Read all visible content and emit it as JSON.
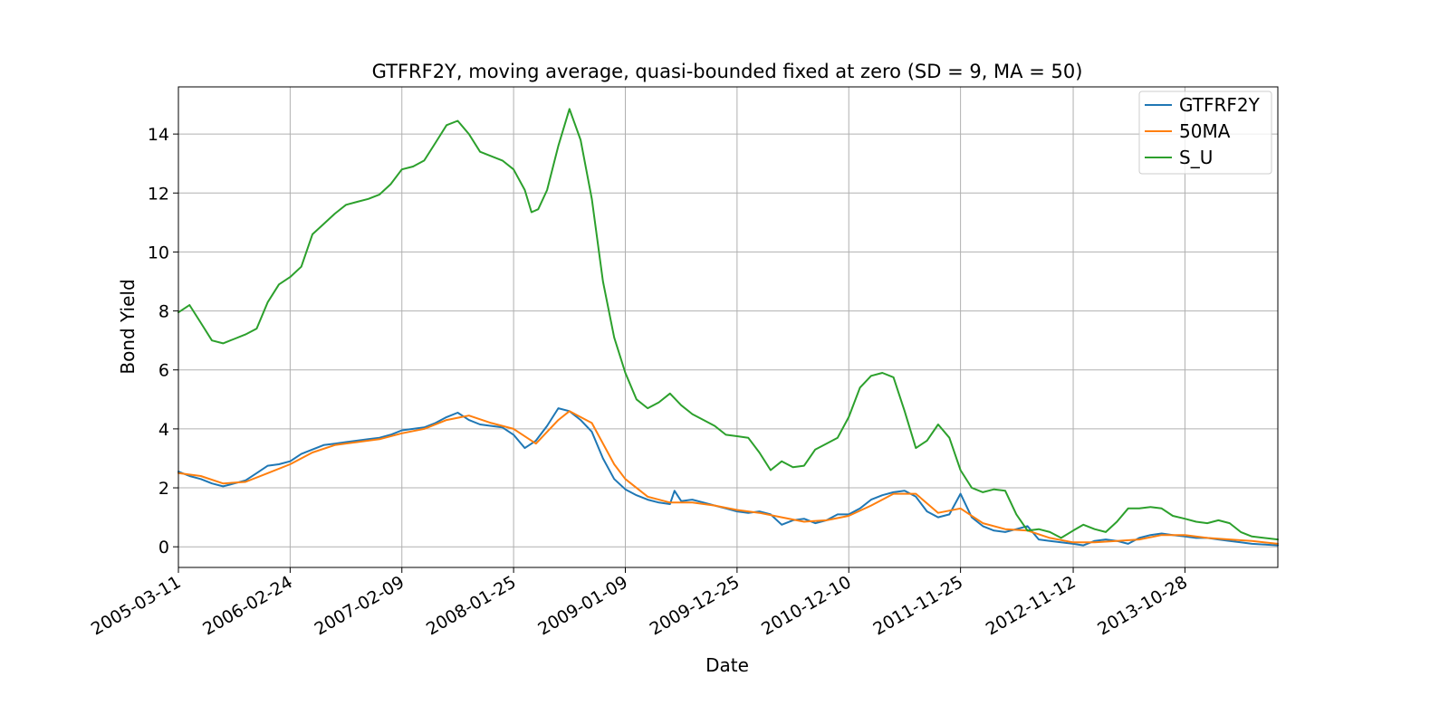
{
  "chart_data": {
    "type": "line",
    "title": "GTFRF2Y, moving average, quasi-bounded fixed at zero (SD = 9, MA = 50)",
    "xlabel": "Date",
    "ylabel": "Bond Yield",
    "x_ticks": [
      "2005-03-11",
      "2006-02-24",
      "2007-02-09",
      "2008-01-25",
      "2009-01-09",
      "2009-12-25",
      "2010-12-10",
      "2011-11-25",
      "2012-11-12",
      "2013-10-28"
    ],
    "y_ticks": [
      "0",
      "2",
      "4",
      "6",
      "8",
      "10",
      "12",
      "14"
    ],
    "xlim": [
      "2005-03-11",
      "2014-08-15"
    ],
    "ylim": [
      -0.7,
      15.6
    ],
    "grid": true,
    "legend_position": "top-right",
    "series": [
      {
        "name": "GTFRF2Y",
        "color": "#1f77b4",
        "points": [
          [
            "2005-03-11",
            2.55
          ],
          [
            "2005-04-15",
            2.4
          ],
          [
            "2005-05-20",
            2.3
          ],
          [
            "2005-06-24",
            2.15
          ],
          [
            "2005-07-29",
            2.05
          ],
          [
            "2005-09-02",
            2.15
          ],
          [
            "2005-10-07",
            2.25
          ],
          [
            "2005-11-11",
            2.5
          ],
          [
            "2005-12-16",
            2.75
          ],
          [
            "2006-01-20",
            2.8
          ],
          [
            "2006-02-24",
            2.9
          ],
          [
            "2006-03-31",
            3.15
          ],
          [
            "2006-05-05",
            3.3
          ],
          [
            "2006-06-09",
            3.45
          ],
          [
            "2006-07-14",
            3.5
          ],
          [
            "2006-08-18",
            3.55
          ],
          [
            "2006-09-22",
            3.6
          ],
          [
            "2006-10-27",
            3.65
          ],
          [
            "2006-12-01",
            3.7
          ],
          [
            "2007-01-05",
            3.8
          ],
          [
            "2007-02-09",
            3.95
          ],
          [
            "2007-03-16",
            4.0
          ],
          [
            "2007-04-20",
            4.05
          ],
          [
            "2007-05-25",
            4.2
          ],
          [
            "2007-06-29",
            4.4
          ],
          [
            "2007-08-03",
            4.55
          ],
          [
            "2007-09-07",
            4.3
          ],
          [
            "2007-10-12",
            4.15
          ],
          [
            "2007-11-16",
            4.1
          ],
          [
            "2007-12-21",
            4.05
          ],
          [
            "2008-01-25",
            3.8
          ],
          [
            "2008-02-29",
            3.35
          ],
          [
            "2008-04-04",
            3.6
          ],
          [
            "2008-05-09",
            4.1
          ],
          [
            "2008-06-13",
            4.7
          ],
          [
            "2008-07-18",
            4.6
          ],
          [
            "2008-08-22",
            4.3
          ],
          [
            "2008-09-26",
            3.9
          ],
          [
            "2008-10-31",
            3.0
          ],
          [
            "2008-12-05",
            2.3
          ],
          [
            "2009-01-09",
            1.95
          ],
          [
            "2009-02-13",
            1.75
          ],
          [
            "2009-03-20",
            1.6
          ],
          [
            "2009-04-24",
            1.5
          ],
          [
            "2009-05-29",
            1.45
          ],
          [
            "2009-06-12",
            1.9
          ],
          [
            "2009-07-03",
            1.55
          ],
          [
            "2009-08-07",
            1.6
          ],
          [
            "2009-09-11",
            1.5
          ],
          [
            "2009-10-16",
            1.4
          ],
          [
            "2009-11-20",
            1.3
          ],
          [
            "2009-12-25",
            1.2
          ],
          [
            "2010-01-29",
            1.15
          ],
          [
            "2010-03-05",
            1.2
          ],
          [
            "2010-04-09",
            1.1
          ],
          [
            "2010-05-14",
            0.75
          ],
          [
            "2010-06-18",
            0.9
          ],
          [
            "2010-07-23",
            0.95
          ],
          [
            "2010-08-27",
            0.8
          ],
          [
            "2010-10-01",
            0.9
          ],
          [
            "2010-11-05",
            1.1
          ],
          [
            "2010-12-10",
            1.1
          ],
          [
            "2011-01-14",
            1.3
          ],
          [
            "2011-02-18",
            1.6
          ],
          [
            "2011-03-25",
            1.75
          ],
          [
            "2011-04-29",
            1.85
          ],
          [
            "2011-06-03",
            1.9
          ],
          [
            "2011-07-08",
            1.7
          ],
          [
            "2011-08-12",
            1.2
          ],
          [
            "2011-09-16",
            1.0
          ],
          [
            "2011-10-21",
            1.1
          ],
          [
            "2011-11-25",
            1.8
          ],
          [
            "2011-12-30",
            1.0
          ],
          [
            "2012-02-03",
            0.7
          ],
          [
            "2012-03-09",
            0.55
          ],
          [
            "2012-04-13",
            0.5
          ],
          [
            "2012-05-18",
            0.6
          ],
          [
            "2012-06-22",
            0.7
          ],
          [
            "2012-07-27",
            0.25
          ],
          [
            "2012-08-31",
            0.2
          ],
          [
            "2012-10-05",
            0.15
          ],
          [
            "2012-11-12",
            0.1
          ],
          [
            "2012-12-14",
            0.05
          ],
          [
            "2013-01-18",
            0.2
          ],
          [
            "2013-02-22",
            0.25
          ],
          [
            "2013-03-29",
            0.2
          ],
          [
            "2013-05-03",
            0.1
          ],
          [
            "2013-06-07",
            0.3
          ],
          [
            "2013-07-12",
            0.4
          ],
          [
            "2013-08-16",
            0.45
          ],
          [
            "2013-09-20",
            0.4
          ],
          [
            "2013-10-28",
            0.35
          ],
          [
            "2013-12-02",
            0.3
          ],
          [
            "2014-01-06",
            0.3
          ],
          [
            "2014-02-10",
            0.25
          ],
          [
            "2014-03-17",
            0.2
          ],
          [
            "2014-04-21",
            0.15
          ],
          [
            "2014-05-26",
            0.1
          ],
          [
            "2014-06-30",
            0.08
          ],
          [
            "2014-08-15",
            0.05
          ]
        ]
      },
      {
        "name": "50MA",
        "color": "#ff7f0e",
        "points": [
          [
            "2005-03-11",
            2.5
          ],
          [
            "2005-05-20",
            2.4
          ],
          [
            "2005-07-29",
            2.15
          ],
          [
            "2005-10-07",
            2.2
          ],
          [
            "2005-12-16",
            2.5
          ],
          [
            "2006-02-24",
            2.8
          ],
          [
            "2006-05-05",
            3.2
          ],
          [
            "2006-07-14",
            3.45
          ],
          [
            "2006-09-22",
            3.55
          ],
          [
            "2006-12-01",
            3.65
          ],
          [
            "2007-02-09",
            3.85
          ],
          [
            "2007-04-20",
            4.0
          ],
          [
            "2007-06-29",
            4.3
          ],
          [
            "2007-09-07",
            4.45
          ],
          [
            "2007-11-16",
            4.2
          ],
          [
            "2008-01-25",
            4.0
          ],
          [
            "2008-04-04",
            3.5
          ],
          [
            "2008-06-13",
            4.3
          ],
          [
            "2008-07-18",
            4.6
          ],
          [
            "2008-09-26",
            4.2
          ],
          [
            "2008-12-05",
            2.8
          ],
          [
            "2009-01-09",
            2.3
          ],
          [
            "2009-03-20",
            1.7
          ],
          [
            "2009-05-29",
            1.5
          ],
          [
            "2009-08-07",
            1.5
          ],
          [
            "2009-10-16",
            1.4
          ],
          [
            "2009-12-25",
            1.25
          ],
          [
            "2010-03-05",
            1.15
          ],
          [
            "2010-05-14",
            1.0
          ],
          [
            "2010-07-23",
            0.85
          ],
          [
            "2010-10-01",
            0.9
          ],
          [
            "2010-12-10",
            1.05
          ],
          [
            "2011-02-18",
            1.4
          ],
          [
            "2011-04-29",
            1.8
          ],
          [
            "2011-07-08",
            1.8
          ],
          [
            "2011-09-16",
            1.15
          ],
          [
            "2011-11-25",
            1.3
          ],
          [
            "2012-02-03",
            0.8
          ],
          [
            "2012-04-13",
            0.6
          ],
          [
            "2012-06-22",
            0.55
          ],
          [
            "2012-08-31",
            0.3
          ],
          [
            "2012-11-12",
            0.15
          ],
          [
            "2013-01-18",
            0.15
          ],
          [
            "2013-03-29",
            0.2
          ],
          [
            "2013-06-07",
            0.25
          ],
          [
            "2013-08-16",
            0.4
          ],
          [
            "2013-10-28",
            0.4
          ],
          [
            "2014-01-06",
            0.3
          ],
          [
            "2014-03-17",
            0.25
          ],
          [
            "2014-05-26",
            0.2
          ],
          [
            "2014-08-15",
            0.1
          ]
        ]
      },
      {
        "name": "S_U",
        "color": "#2ca02c",
        "points": [
          [
            "2005-03-11",
            7.95
          ],
          [
            "2005-04-15",
            8.2
          ],
          [
            "2005-05-20",
            7.6
          ],
          [
            "2005-06-24",
            7.0
          ],
          [
            "2005-07-29",
            6.9
          ],
          [
            "2005-09-02",
            7.05
          ],
          [
            "2005-10-07",
            7.2
          ],
          [
            "2005-11-11",
            7.4
          ],
          [
            "2005-12-16",
            8.3
          ],
          [
            "2006-01-20",
            8.9
          ],
          [
            "2006-02-24",
            9.15
          ],
          [
            "2006-03-31",
            9.5
          ],
          [
            "2006-05-05",
            10.6
          ],
          [
            "2006-06-09",
            10.95
          ],
          [
            "2006-07-14",
            11.3
          ],
          [
            "2006-08-18",
            11.6
          ],
          [
            "2006-09-22",
            11.7
          ],
          [
            "2006-10-27",
            11.8
          ],
          [
            "2006-12-01",
            11.95
          ],
          [
            "2007-01-05",
            12.3
          ],
          [
            "2007-02-09",
            12.8
          ],
          [
            "2007-03-16",
            12.9
          ],
          [
            "2007-04-20",
            13.1
          ],
          [
            "2007-05-25",
            13.7
          ],
          [
            "2007-06-29",
            14.3
          ],
          [
            "2007-08-03",
            14.45
          ],
          [
            "2007-09-07",
            14.0
          ],
          [
            "2007-10-12",
            13.4
          ],
          [
            "2007-11-16",
            13.25
          ],
          [
            "2007-12-21",
            13.1
          ],
          [
            "2008-01-25",
            12.8
          ],
          [
            "2008-02-29",
            12.1
          ],
          [
            "2008-03-21",
            11.35
          ],
          [
            "2008-04-11",
            11.45
          ],
          [
            "2008-05-09",
            12.1
          ],
          [
            "2008-06-13",
            13.6
          ],
          [
            "2008-07-18",
            14.85
          ],
          [
            "2008-08-22",
            13.8
          ],
          [
            "2008-09-26",
            11.8
          ],
          [
            "2008-10-31",
            9.0
          ],
          [
            "2008-12-05",
            7.1
          ],
          [
            "2009-01-09",
            5.9
          ],
          [
            "2009-02-13",
            5.0
          ],
          [
            "2009-03-20",
            4.7
          ],
          [
            "2009-04-24",
            4.9
          ],
          [
            "2009-05-29",
            5.2
          ],
          [
            "2009-07-03",
            4.8
          ],
          [
            "2009-08-07",
            4.5
          ],
          [
            "2009-09-11",
            4.3
          ],
          [
            "2009-10-16",
            4.1
          ],
          [
            "2009-11-20",
            3.8
          ],
          [
            "2009-12-25",
            3.75
          ],
          [
            "2010-01-29",
            3.7
          ],
          [
            "2010-03-05",
            3.2
          ],
          [
            "2010-04-09",
            2.6
          ],
          [
            "2010-05-14",
            2.9
          ],
          [
            "2010-06-18",
            2.7
          ],
          [
            "2010-07-23",
            2.75
          ],
          [
            "2010-08-27",
            3.3
          ],
          [
            "2010-10-01",
            3.5
          ],
          [
            "2010-11-05",
            3.7
          ],
          [
            "2010-12-10",
            4.4
          ],
          [
            "2011-01-14",
            5.4
          ],
          [
            "2011-02-18",
            5.8
          ],
          [
            "2011-03-25",
            5.9
          ],
          [
            "2011-04-29",
            5.75
          ],
          [
            "2011-06-03",
            4.6
          ],
          [
            "2011-07-08",
            3.35
          ],
          [
            "2011-08-12",
            3.6
          ],
          [
            "2011-09-16",
            4.15
          ],
          [
            "2011-10-21",
            3.7
          ],
          [
            "2011-11-25",
            2.6
          ],
          [
            "2011-12-30",
            2.0
          ],
          [
            "2012-02-03",
            1.85
          ],
          [
            "2012-03-09",
            1.95
          ],
          [
            "2012-04-13",
            1.9
          ],
          [
            "2012-05-18",
            1.1
          ],
          [
            "2012-06-22",
            0.55
          ],
          [
            "2012-07-27",
            0.6
          ],
          [
            "2012-08-31",
            0.5
          ],
          [
            "2012-10-05",
            0.3
          ],
          [
            "2012-11-12",
            0.55
          ],
          [
            "2012-12-14",
            0.75
          ],
          [
            "2013-01-18",
            0.6
          ],
          [
            "2013-02-22",
            0.5
          ],
          [
            "2013-03-29",
            0.85
          ],
          [
            "2013-05-03",
            1.3
          ],
          [
            "2013-06-07",
            1.3
          ],
          [
            "2013-07-12",
            1.35
          ],
          [
            "2013-08-16",
            1.3
          ],
          [
            "2013-09-20",
            1.05
          ],
          [
            "2013-10-28",
            0.95
          ],
          [
            "2013-12-02",
            0.85
          ],
          [
            "2014-01-06",
            0.8
          ],
          [
            "2014-02-10",
            0.9
          ],
          [
            "2014-03-17",
            0.8
          ],
          [
            "2014-04-21",
            0.5
          ],
          [
            "2014-05-26",
            0.35
          ],
          [
            "2014-08-15",
            0.25
          ]
        ]
      }
    ]
  }
}
